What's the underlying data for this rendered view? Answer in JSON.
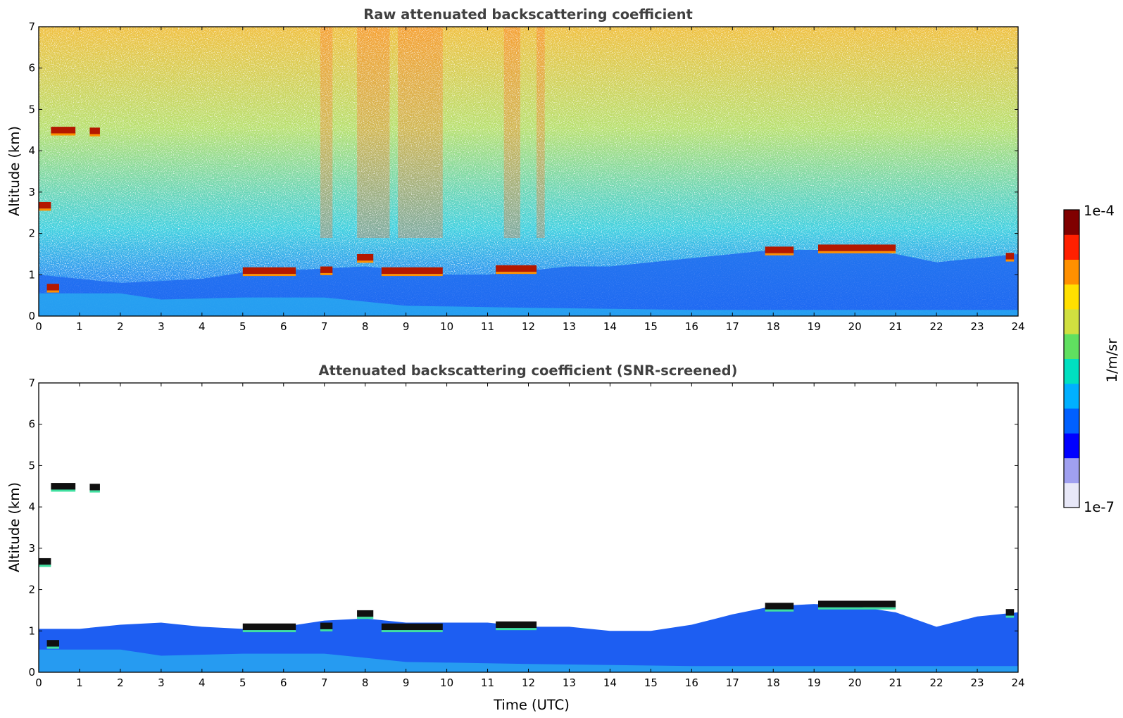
{
  "chart_data": [
    {
      "type": "heatmap",
      "title": "Raw attenuated backscattering coefficient",
      "xlabel": "",
      "ylabel": "Altitude (km)",
      "xlim": [
        0,
        24
      ],
      "ylim": [
        0,
        7
      ],
      "xticks": [
        "0",
        "1",
        "2",
        "3",
        "4",
        "5",
        "6",
        "7",
        "8",
        "9",
        "10",
        "11",
        "12",
        "13",
        "14",
        "15",
        "16",
        "17",
        "18",
        "19",
        "20",
        "21",
        "22",
        "23",
        "24"
      ],
      "yticks": [
        "0",
        "1",
        "2",
        "3",
        "4",
        "5",
        "6",
        "7"
      ],
      "boundary_layer_top_km": [
        [
          0,
          1.0
        ],
        [
          1,
          0.9
        ],
        [
          2,
          0.8
        ],
        [
          3,
          0.85
        ],
        [
          4,
          0.9
        ],
        [
          5,
          1.05
        ],
        [
          6,
          1.1
        ],
        [
          7,
          1.15
        ],
        [
          8,
          1.2
        ],
        [
          9,
          1.1
        ],
        [
          10,
          1.0
        ],
        [
          11,
          1.0
        ],
        [
          12,
          1.1
        ],
        [
          13,
          1.2
        ],
        [
          14,
          1.2
        ],
        [
          15,
          1.3
        ],
        [
          16,
          1.4
        ],
        [
          17,
          1.5
        ],
        [
          18,
          1.6
        ],
        [
          19,
          1.6
        ],
        [
          20,
          1.6
        ],
        [
          21,
          1.5
        ],
        [
          22,
          1.3
        ],
        [
          23,
          1.4
        ],
        [
          24,
          1.5
        ]
      ],
      "cloud_layers": [
        {
          "t0": 0.3,
          "t1": 0.9,
          "alt_km": 4.5
        },
        {
          "t0": 1.25,
          "t1": 1.5,
          "alt_km": 4.48
        },
        {
          "t0": 0.0,
          "t1": 0.3,
          "alt_km": 2.68
        },
        {
          "t0": 0.2,
          "t1": 0.5,
          "alt_km": 0.7
        },
        {
          "t0": 5.0,
          "t1": 6.3,
          "alt_km": 1.1
        },
        {
          "t0": 6.9,
          "t1": 7.2,
          "alt_km": 1.12
        },
        {
          "t0": 7.8,
          "t1": 8.2,
          "alt_km": 1.42
        },
        {
          "t0": 8.4,
          "t1": 9.9,
          "alt_km": 1.1
        },
        {
          "t0": 11.2,
          "t1": 12.2,
          "alt_km": 1.15
        },
        {
          "t0": 17.8,
          "t1": 18.5,
          "alt_km": 1.6
        },
        {
          "t0": 19.1,
          "t1": 21.0,
          "alt_km": 1.65
        },
        {
          "t0": 23.7,
          "t1": 23.9,
          "alt_km": 1.45
        }
      ]
    },
    {
      "type": "heatmap",
      "title": "Attenuated backscattering coefficient (SNR-screened)",
      "xlabel": "Time (UTC)",
      "ylabel": "Altitude (km)",
      "xlim": [
        0,
        24
      ],
      "ylim": [
        0,
        7
      ],
      "xticks": [
        "0",
        "1",
        "2",
        "3",
        "4",
        "5",
        "6",
        "7",
        "8",
        "9",
        "10",
        "11",
        "12",
        "13",
        "14",
        "15",
        "16",
        "17",
        "18",
        "19",
        "20",
        "21",
        "22",
        "23",
        "24"
      ],
      "yticks": [
        "0",
        "1",
        "2",
        "3",
        "4",
        "5",
        "6",
        "7"
      ],
      "boundary_layer_top_km": [
        [
          0,
          1.05
        ],
        [
          1,
          1.05
        ],
        [
          2,
          1.15
        ],
        [
          3,
          1.2
        ],
        [
          4,
          1.1
        ],
        [
          5,
          1.05
        ],
        [
          6,
          1.1
        ],
        [
          7,
          1.25
        ],
        [
          8,
          1.3
        ],
        [
          9,
          1.2
        ],
        [
          10,
          1.2
        ],
        [
          11,
          1.2
        ],
        [
          12,
          1.1
        ],
        [
          13,
          1.1
        ],
        [
          14,
          1.0
        ],
        [
          15,
          1.0
        ],
        [
          16,
          1.15
        ],
        [
          17,
          1.4
        ],
        [
          18,
          1.6
        ],
        [
          19,
          1.65
        ],
        [
          20,
          1.6
        ],
        [
          21,
          1.45
        ],
        [
          22,
          1.1
        ],
        [
          23,
          1.35
        ],
        [
          24,
          1.45
        ]
      ],
      "cloud_layers": [
        {
          "t0": 0.3,
          "t1": 0.9,
          "alt_km": 4.5
        },
        {
          "t0": 1.25,
          "t1": 1.5,
          "alt_km": 4.48
        },
        {
          "t0": 0.0,
          "t1": 0.3,
          "alt_km": 2.68
        },
        {
          "t0": 0.2,
          "t1": 0.5,
          "alt_km": 0.7
        },
        {
          "t0": 5.0,
          "t1": 6.3,
          "alt_km": 1.1
        },
        {
          "t0": 6.9,
          "t1": 7.2,
          "alt_km": 1.12
        },
        {
          "t0": 7.8,
          "t1": 8.2,
          "alt_km": 1.42
        },
        {
          "t0": 8.4,
          "t1": 9.9,
          "alt_km": 1.1
        },
        {
          "t0": 11.2,
          "t1": 12.2,
          "alt_km": 1.15
        },
        {
          "t0": 17.8,
          "t1": 18.5,
          "alt_km": 1.6
        },
        {
          "t0": 19.1,
          "t1": 21.0,
          "alt_km": 1.65
        },
        {
          "t0": 23.7,
          "t1": 23.9,
          "alt_km": 1.45
        }
      ]
    }
  ],
  "colorbar": {
    "label": "1/m/sr",
    "max_label": "1e-4",
    "min_label": "1e-7",
    "colors": [
      "#e8e8f8",
      "#a0a0f0",
      "#0000ff",
      "#0060ff",
      "#00b0ff",
      "#00e0c0",
      "#60e060",
      "#d0e040",
      "#ffe000",
      "#ff9000",
      "#ff2000",
      "#800000"
    ]
  }
}
